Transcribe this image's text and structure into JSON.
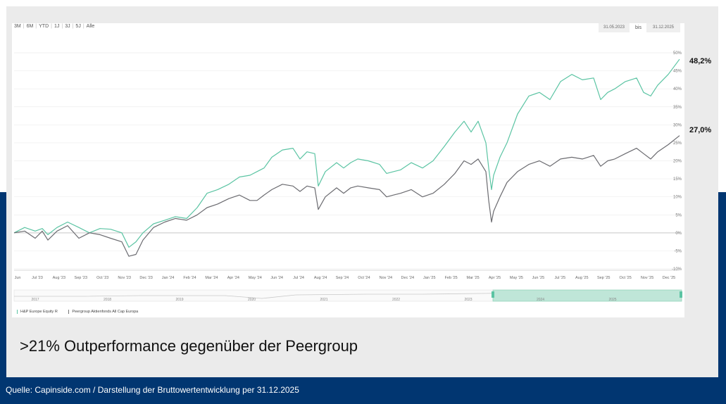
{
  "headline": ">21% Outperformance gegenüber der Peergroup",
  "source": "Quelle: Capinside.com / Darstellung der Bruttowertentwicklung per 31.12.2025",
  "range_buttons": [
    "3M",
    "6M",
    "YTD",
    "1J",
    "3J",
    "5J",
    "Alle"
  ],
  "date_range": {
    "from": "31.05.2023",
    "to_label": "bis",
    "to": "31.12.2025"
  },
  "end_labels": {
    "fund": "48,2%",
    "peer": "27,0%"
  },
  "colors": {
    "fund": "#5bc4a3",
    "peer": "#6b6b70",
    "band": "#013671",
    "panel": "#ebebeb"
  },
  "chart_data": {
    "type": "line",
    "title": "",
    "xlabel": "",
    "ylabel": "",
    "ylim": [
      -10,
      50
    ],
    "y_ticks": [
      "-10%",
      "-5%",
      "0%",
      "5%",
      "10%",
      "15%",
      "20%",
      "25%",
      "30%",
      "35%",
      "40%",
      "45%",
      "50%"
    ],
    "x_ticks": [
      "Jun",
      "Jul '23",
      "Aug '23",
      "Sep '23",
      "Oct '23",
      "Nov '23",
      "Dec '23",
      "Jan '24",
      "Feb '24",
      "Mar '24",
      "Apr '24",
      "May '24",
      "Jun '24",
      "Jul '24",
      "Aug '24",
      "Sep '24",
      "Oct '24",
      "Nov '24",
      "Dec '24",
      "Jan '25",
      "Feb '25",
      "Mar '25",
      "Apr '25",
      "May '25",
      "Jun '25",
      "Jul '25",
      "Aug '25",
      "Sep '25",
      "Oct '25",
      "Nov '25",
      "Dec '25"
    ],
    "x_start": "2023-05-31",
    "x_end": "2025-12-31",
    "series": [
      {
        "name": "H&P Europe Equity R",
        "points": [
          [
            "2023-05-31",
            0
          ],
          [
            "2023-06-15",
            1.5
          ],
          [
            "2023-06-30",
            0.5
          ],
          [
            "2023-07-10",
            1.2
          ],
          [
            "2023-07-18",
            -0.5
          ],
          [
            "2023-07-31",
            1.5
          ],
          [
            "2023-08-15",
            3
          ],
          [
            "2023-08-31",
            1.5
          ],
          [
            "2023-09-15",
            0
          ],
          [
            "2023-09-30",
            1.2
          ],
          [
            "2023-10-15",
            1
          ],
          [
            "2023-10-31",
            0
          ],
          [
            "2023-11-10",
            -4
          ],
          [
            "2023-11-20",
            -2.5
          ],
          [
            "2023-11-30",
            0
          ],
          [
            "2023-12-15",
            2.5
          ],
          [
            "2023-12-31",
            3.5
          ],
          [
            "2024-01-15",
            4.5
          ],
          [
            "2024-01-31",
            4
          ],
          [
            "2024-02-15",
            7
          ],
          [
            "2024-02-29",
            11
          ],
          [
            "2024-03-15",
            12
          ],
          [
            "2024-03-31",
            13.5
          ],
          [
            "2024-04-15",
            15.5
          ],
          [
            "2024-04-30",
            16
          ],
          [
            "2024-05-10",
            17
          ],
          [
            "2024-05-20",
            18
          ],
          [
            "2024-05-31",
            21
          ],
          [
            "2024-06-15",
            23
          ],
          [
            "2024-06-30",
            23.5
          ],
          [
            "2024-07-10",
            20.5
          ],
          [
            "2024-07-20",
            22.5
          ],
          [
            "2024-07-31",
            22
          ],
          [
            "2024-08-05",
            13
          ],
          [
            "2024-08-15",
            17
          ],
          [
            "2024-08-31",
            19.5
          ],
          [
            "2024-09-10",
            18
          ],
          [
            "2024-09-20",
            19.5
          ],
          [
            "2024-09-30",
            20.5
          ],
          [
            "2024-10-15",
            20
          ],
          [
            "2024-10-31",
            19
          ],
          [
            "2024-11-10",
            16.5
          ],
          [
            "2024-11-20",
            17
          ],
          [
            "2024-11-30",
            17.5
          ],
          [
            "2024-12-15",
            19.5
          ],
          [
            "2024-12-31",
            18
          ],
          [
            "2025-01-15",
            20
          ],
          [
            "2025-01-31",
            24
          ],
          [
            "2025-02-15",
            28
          ],
          [
            "2025-02-28",
            31
          ],
          [
            "2025-03-10",
            28
          ],
          [
            "2025-03-20",
            31
          ],
          [
            "2025-03-31",
            25
          ],
          [
            "2025-04-04",
            18
          ],
          [
            "2025-04-08",
            12
          ],
          [
            "2025-04-11",
            16
          ],
          [
            "2025-04-20",
            21
          ],
          [
            "2025-04-30",
            25
          ],
          [
            "2025-05-15",
            33
          ],
          [
            "2025-05-31",
            38
          ],
          [
            "2025-06-15",
            39
          ],
          [
            "2025-06-30",
            37
          ],
          [
            "2025-07-15",
            42
          ],
          [
            "2025-07-31",
            44
          ],
          [
            "2025-08-15",
            42.5
          ],
          [
            "2025-08-31",
            43
          ],
          [
            "2025-09-10",
            37
          ],
          [
            "2025-09-20",
            39
          ],
          [
            "2025-09-30",
            40
          ],
          [
            "2025-10-15",
            42
          ],
          [
            "2025-10-31",
            43
          ],
          [
            "2025-11-10",
            39
          ],
          [
            "2025-11-20",
            38
          ],
          [
            "2025-11-30",
            41
          ],
          [
            "2025-12-15",
            44
          ],
          [
            "2025-12-31",
            48.2
          ]
        ]
      },
      {
        "name": "Peergroup Aktienfonds All Cap Europa",
        "points": [
          [
            "2023-05-31",
            0
          ],
          [
            "2023-06-15",
            0.5
          ],
          [
            "2023-06-30",
            -1.5
          ],
          [
            "2023-07-10",
            0.5
          ],
          [
            "2023-07-18",
            -2
          ],
          [
            "2023-07-31",
            0.5
          ],
          [
            "2023-08-15",
            2
          ],
          [
            "2023-08-31",
            -1.5
          ],
          [
            "2023-09-15",
            0
          ],
          [
            "2023-09-30",
            -0.5
          ],
          [
            "2023-10-15",
            -1.5
          ],
          [
            "2023-10-31",
            -2.5
          ],
          [
            "2023-11-10",
            -6.5
          ],
          [
            "2023-11-20",
            -6
          ],
          [
            "2023-11-30",
            -2
          ],
          [
            "2023-12-15",
            1.5
          ],
          [
            "2023-12-31",
            3
          ],
          [
            "2024-01-15",
            4
          ],
          [
            "2024-01-31",
            3.5
          ],
          [
            "2024-02-15",
            5
          ],
          [
            "2024-02-29",
            7
          ],
          [
            "2024-03-15",
            8
          ],
          [
            "2024-03-31",
            9.5
          ],
          [
            "2024-04-15",
            10.5
          ],
          [
            "2024-04-30",
            9
          ],
          [
            "2024-05-10",
            9
          ],
          [
            "2024-05-20",
            10.5
          ],
          [
            "2024-05-31",
            12
          ],
          [
            "2024-06-15",
            13.5
          ],
          [
            "2024-06-30",
            13
          ],
          [
            "2024-07-10",
            11.5
          ],
          [
            "2024-07-20",
            13
          ],
          [
            "2024-07-31",
            12.5
          ],
          [
            "2024-08-05",
            6.5
          ],
          [
            "2024-08-15",
            10
          ],
          [
            "2024-08-31",
            12.5
          ],
          [
            "2024-09-10",
            11
          ],
          [
            "2024-09-20",
            12.5
          ],
          [
            "2024-09-30",
            13
          ],
          [
            "2024-10-15",
            12.5
          ],
          [
            "2024-10-31",
            12
          ],
          [
            "2024-11-10",
            10
          ],
          [
            "2024-11-20",
            10.5
          ],
          [
            "2024-11-30",
            11
          ],
          [
            "2024-12-15",
            12
          ],
          [
            "2024-12-31",
            10
          ],
          [
            "2025-01-15",
            11
          ],
          [
            "2025-01-31",
            13.5
          ],
          [
            "2025-02-15",
            16.5
          ],
          [
            "2025-02-28",
            20
          ],
          [
            "2025-03-10",
            19
          ],
          [
            "2025-03-20",
            20.5
          ],
          [
            "2025-03-31",
            17
          ],
          [
            "2025-04-04",
            9
          ],
          [
            "2025-04-08",
            3
          ],
          [
            "2025-04-11",
            6
          ],
          [
            "2025-04-20",
            10
          ],
          [
            "2025-04-30",
            14
          ],
          [
            "2025-05-15",
            17
          ],
          [
            "2025-05-31",
            19
          ],
          [
            "2025-06-15",
            20
          ],
          [
            "2025-06-30",
            18.5
          ],
          [
            "2025-07-15",
            20.5
          ],
          [
            "2025-07-31",
            21
          ],
          [
            "2025-08-15",
            20.5
          ],
          [
            "2025-08-31",
            21.5
          ],
          [
            "2025-09-10",
            18.5
          ],
          [
            "2025-09-20",
            20
          ],
          [
            "2025-09-30",
            20.5
          ],
          [
            "2025-10-15",
            22
          ],
          [
            "2025-10-31",
            23.5
          ],
          [
            "2025-11-10",
            22
          ],
          [
            "2025-11-20",
            20.5
          ],
          [
            "2025-11-30",
            22.5
          ],
          [
            "2025-12-15",
            24.5
          ],
          [
            "2025-12-31",
            27
          ]
        ]
      }
    ],
    "navigator": {
      "year_labels": [
        "2017",
        "2018",
        "2019",
        "2020",
        "2021",
        "2022",
        "2023",
        "2024",
        "2025"
      ],
      "selected_from": "2023-05-31",
      "selected_to": "2025-12-31"
    },
    "legend_position": "bottom-left"
  }
}
